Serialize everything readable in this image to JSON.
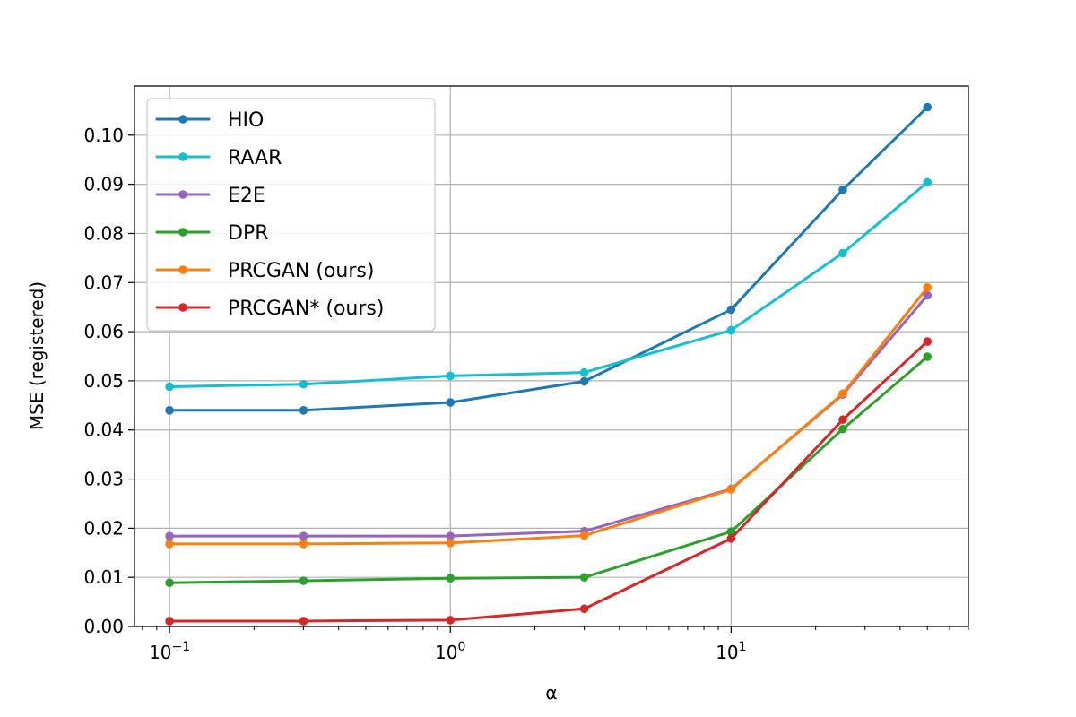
{
  "chart_data": {
    "type": "line",
    "title": "",
    "xlabel": "α",
    "ylabel": "MSE (registered)",
    "xscale": "log",
    "xlim": [
      0.075,
      70
    ],
    "ylim": [
      0,
      0.11
    ],
    "grid": true,
    "legend_position": "upper-left",
    "x": [
      0.1,
      0.3,
      1,
      3,
      10,
      25,
      50
    ],
    "x_ticks": [
      {
        "value": 0.1,
        "base": "10",
        "exp": "−1"
      },
      {
        "value": 1,
        "base": "10",
        "exp": "0"
      },
      {
        "value": 10,
        "base": "10",
        "exp": "1"
      }
    ],
    "y_ticks": [
      "0.00",
      "0.01",
      "0.02",
      "0.03",
      "0.04",
      "0.05",
      "0.06",
      "0.07",
      "0.08",
      "0.09",
      "0.10"
    ],
    "series": [
      {
        "name": "HIO",
        "color": "#1f77b4",
        "values": [
          0.044,
          0.044,
          0.0456,
          0.0499,
          0.0645,
          0.0889,
          0.1057
        ]
      },
      {
        "name": "RAAR",
        "color": "#17becf",
        "values": [
          0.0488,
          0.0493,
          0.051,
          0.0517,
          0.0603,
          0.076,
          0.0904
        ]
      },
      {
        "name": "E2E",
        "color": "#9467bd",
        "values": [
          0.0184,
          0.0184,
          0.0184,
          0.0194,
          0.028,
          0.0472,
          0.0674
        ]
      },
      {
        "name": "DPR",
        "color": "#2ca02c",
        "values": [
          0.0089,
          0.0093,
          0.0098,
          0.01,
          0.0193,
          0.0402,
          0.0549
        ]
      },
      {
        "name": "PRCGAN (ours)",
        "color": "#ff7f0e",
        "values": [
          0.0168,
          0.0168,
          0.017,
          0.0185,
          0.0279,
          0.0474,
          0.069
        ]
      },
      {
        "name": "PRCGAN* (ours)",
        "color": "#d62728",
        "values": [
          0.0011,
          0.0011,
          0.0013,
          0.0036,
          0.0179,
          0.0421,
          0.058
        ]
      }
    ]
  }
}
